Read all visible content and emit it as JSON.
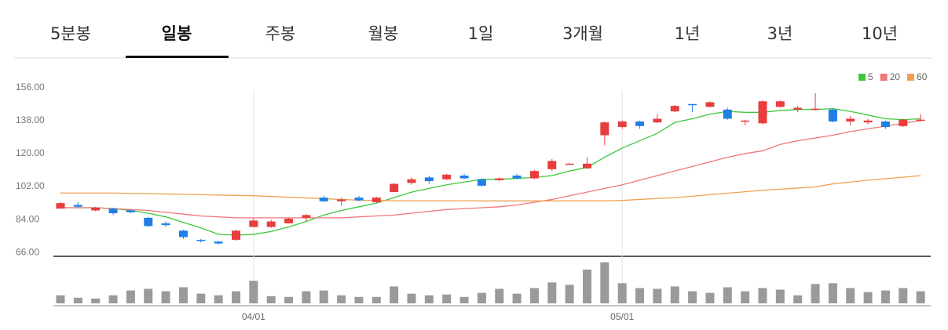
{
  "tabs": {
    "items": [
      "5분봉",
      "일봉",
      "주봉",
      "월봉",
      "1일",
      "3개월",
      "1년",
      "3년",
      "10년"
    ],
    "selected": 1
  },
  "chart_data": {
    "type": "candlestick",
    "categories": [
      null,
      null,
      null,
      null,
      null,
      null,
      null,
      null,
      null,
      null,
      null,
      "04/01",
      null,
      null,
      null,
      null,
      null,
      null,
      null,
      null,
      null,
      null,
      null,
      null,
      null,
      null,
      null,
      null,
      null,
      null,
      null,
      null,
      "05/01",
      null,
      null,
      null,
      null,
      null,
      null,
      null,
      null,
      null,
      null,
      null,
      null,
      null,
      null,
      null,
      null,
      null
    ],
    "open": [
      90,
      92,
      89,
      90,
      89,
      85,
      82,
      78,
      73,
      72,
      73,
      80,
      80,
      82,
      85,
      96,
      94,
      96,
      93.5,
      99,
      104,
      107,
      106,
      108,
      106,
      105.5,
      108,
      106.5,
      111.5,
      114,
      112,
      130,
      134.5,
      137.5,
      137,
      143,
      147,
      145.5,
      144,
      137.5,
      136.5,
      145.5,
      144,
      144,
      144,
      137.5,
      137,
      137.5,
      135,
      138
    ],
    "high": [
      93.5,
      93.5,
      91,
      90.5,
      89.5,
      85.5,
      83,
      78.5,
      73.5,
      72.5,
      78.5,
      85,
      84,
      85,
      87,
      97,
      96,
      97,
      96.5,
      104,
      107,
      108,
      109,
      109,
      106.5,
      107,
      109,
      111,
      117,
      115,
      118,
      137.5,
      138,
      138,
      141.5,
      146.5,
      147,
      148.5,
      145,
      138.5,
      149,
      149,
      146,
      153,
      144.5,
      140.5,
      139,
      138,
      139,
      141.5
    ],
    "low": [
      90,
      90.5,
      88.5,
      86.5,
      87.5,
      80,
      80,
      73.5,
      71.5,
      70.5,
      72.5,
      80,
      79.5,
      82,
      83,
      93.5,
      91.5,
      94,
      93,
      99,
      103,
      103.5,
      105.5,
      106,
      102,
      105,
      106,
      106,
      110.5,
      114,
      111.5,
      124.5,
      133.5,
      133.5,
      136.5,
      142.5,
      142.5,
      145,
      138.5,
      135.5,
      136,
      145,
      142.5,
      143.5,
      137,
      135.5,
      136,
      133.5,
      134.5,
      137.5
    ],
    "close": [
      93,
      91,
      90.5,
      87.5,
      88,
      80.5,
      81,
      74.5,
      72.5,
      71,
      78,
      83.5,
      83,
      84.5,
      86.5,
      94,
      95,
      94.5,
      96,
      103.5,
      106,
      105,
      108.5,
      106.5,
      102.5,
      106.5,
      106.5,
      110.5,
      116,
      114.5,
      114.5,
      137,
      137.5,
      135,
      139,
      146,
      146.5,
      148,
      139,
      138,
      148.5,
      148.5,
      145,
      144.5,
      137.5,
      139,
      138,
      134.5,
      138.5,
      138.5
    ],
    "up_color": "#e83d3d",
    "down_color": "#1f7fe6",
    "ylim": [
      64,
      161
    ],
    "yticks": [
      {
        "value": 156,
        "label": "156.00"
      },
      {
        "value": 138,
        "label": "138.00"
      },
      {
        "value": 120,
        "label": "120.00"
      },
      {
        "value": 102,
        "label": "102.00"
      },
      {
        "value": 84,
        "label": "84.00"
      },
      {
        "value": 66,
        "label": "66.00"
      }
    ],
    "series": [
      {
        "name": "5",
        "color": "#3cc83c",
        "values": [
          90.5,
          90.5,
          90.5,
          90,
          89,
          87.5,
          85.5,
          82.5,
          79.5,
          76,
          75.5,
          76,
          77.5,
          80,
          83,
          86.5,
          89,
          91,
          93,
          96,
          99,
          101,
          103,
          104.5,
          106,
          106,
          106.5,
          107,
          108,
          110.5,
          112.5,
          118,
          123,
          127,
          131,
          137,
          139,
          141.5,
          143,
          142.5,
          142.5,
          143.5,
          144,
          144,
          144.5,
          143,
          141,
          139,
          138.5,
          139
        ]
      },
      {
        "name": "20",
        "color": "#f07878",
        "values": [
          90.5,
          90.5,
          90.5,
          90,
          89.5,
          89,
          88,
          87,
          86,
          85.5,
          85,
          85,
          85,
          85,
          85,
          85,
          85,
          85.5,
          86,
          86.5,
          87.5,
          88.5,
          89.5,
          90,
          90.5,
          91,
          92,
          93.5,
          95,
          97,
          99,
          101,
          103,
          105.5,
          108,
          110.5,
          113,
          115.5,
          118,
          120,
          121.5,
          125,
          127,
          128.5,
          130,
          132,
          133.5,
          135,
          136.5,
          138
        ]
      },
      {
        "name": "60",
        "color": "#f0a050",
        "values": [
          98.5,
          98.5,
          98.5,
          98.5,
          98.3,
          98.2,
          98,
          97.8,
          97.6,
          97.4,
          97.2,
          97,
          96.6,
          96.2,
          95.8,
          95.4,
          95,
          94.6,
          94.4,
          94.3,
          94.3,
          94.3,
          94.3,
          94.3,
          94.2,
          94.2,
          94.2,
          94.2,
          94.2,
          94.2,
          94.2,
          94.2,
          94.5,
          95,
          95.5,
          96,
          96.8,
          97.6,
          98.4,
          99.2,
          100,
          100.6,
          101.2,
          101.8,
          103.5,
          104.5,
          105.5,
          106.3,
          107.1,
          108
        ]
      }
    ],
    "volume": [
      10,
      7,
      6,
      10,
      16,
      18,
      15,
      20,
      12,
      10,
      15,
      28,
      9,
      8,
      15,
      16,
      10,
      8,
      8,
      21,
      12,
      10,
      11,
      8,
      13,
      18,
      12,
      19,
      26,
      23,
      42,
      51,
      25,
      19,
      18,
      21,
      15,
      13,
      20,
      15,
      19,
      17,
      10,
      24,
      25,
      19,
      14,
      16,
      19,
      15
    ],
    "volume_color": "#9a9a9a"
  }
}
